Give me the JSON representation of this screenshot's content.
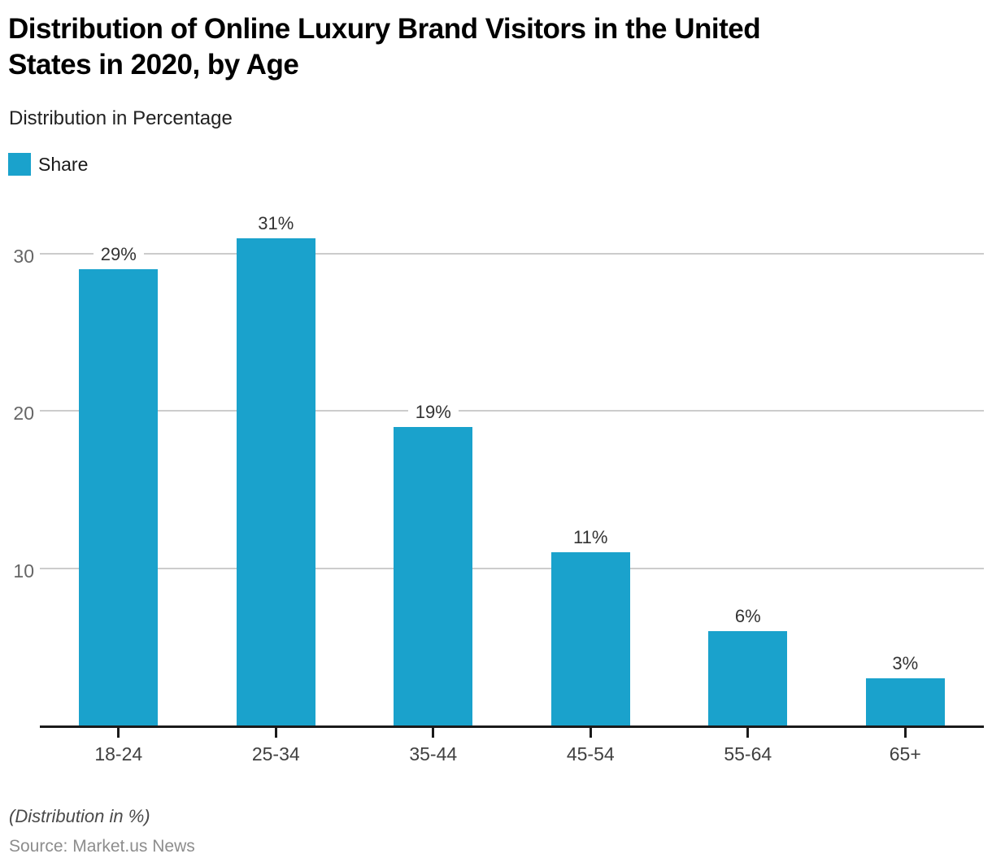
{
  "header": {
    "title_line1": "Distribution of Online Luxury Brand Visitors in the United",
    "title_line2": "States in 2020, by Age",
    "subtitle": "Distribution in Percentage"
  },
  "legend": {
    "label": "Share",
    "color": "#1AA2CC"
  },
  "chart_data": {
    "type": "bar",
    "title": "Distribution of Online Luxury Brand Visitors in the United States in 2020, by Age",
    "subtitle": "Distribution in Percentage",
    "categories": [
      "18-24",
      "25-34",
      "35-44",
      "45-54",
      "55-64",
      "65+"
    ],
    "series": [
      {
        "name": "Share",
        "values": [
          29,
          31,
          19,
          11,
          6,
          3
        ]
      }
    ],
    "data_labels": [
      "29%",
      "31%",
      "19%",
      "11%",
      "6%",
      "3%"
    ],
    "xlabel": "",
    "ylabel": "",
    "y_ticks": [
      10,
      20,
      30
    ],
    "ylim": [
      0,
      33.4
    ],
    "grid": "horizontal",
    "legend_position": "top-left",
    "bar_color": "#1AA2CC",
    "gridline_color": "#cccccc",
    "axis_color": "#1a1a1a"
  },
  "footer": {
    "note": "(Distribution in %)",
    "source": "Source: Market.us News"
  }
}
